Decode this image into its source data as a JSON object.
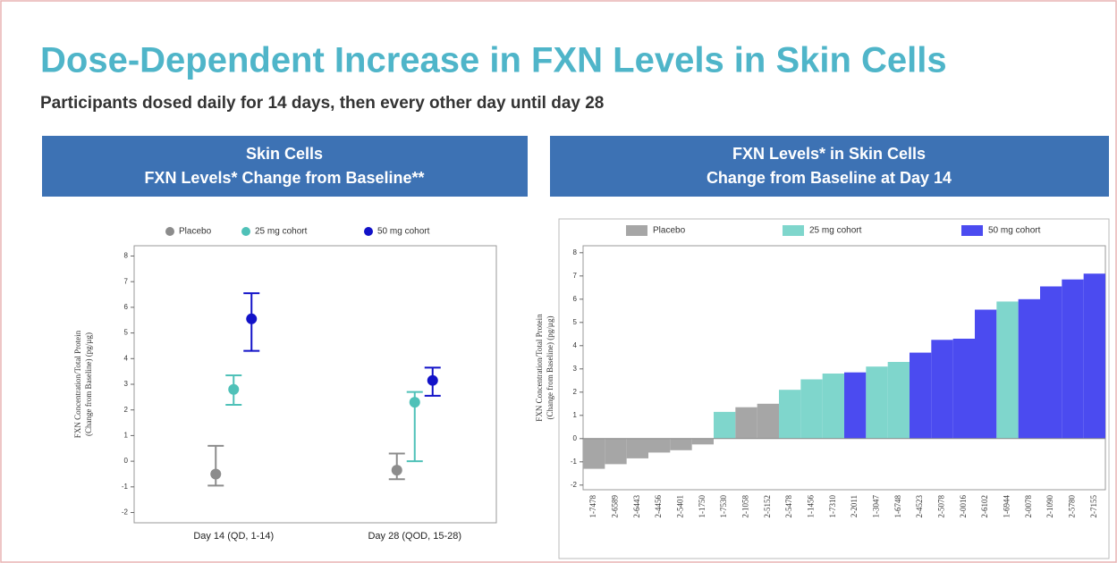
{
  "title": "Dose-Dependent Increase in FXN Levels in Skin Cells",
  "subtitle": "Participants dosed daily for 14 days, then every other day until day 28",
  "chart_data": [
    {
      "type": "errorbar",
      "header": [
        "Skin Cells",
        "FXN Levels* Change from Baseline**"
      ],
      "ylabel": [
        "FXN Concentration/Total Protein",
        "(Change from Baseline) (pg/µg)"
      ],
      "categories": [
        "Day 14 (QD, 1-14)",
        "Day 28 (QOD, 15-28)"
      ],
      "series": [
        {
          "name": "Placebo",
          "color": "#8c8c8c",
          "values": [
            -0.5,
            -0.35
          ],
          "lower": [
            -0.95,
            -0.7
          ],
          "upper": [
            0.6,
            0.3
          ]
        },
        {
          "name": "25 mg cohort",
          "color": "#4fc1b8",
          "values": [
            2.8,
            2.3
          ],
          "lower": [
            2.2,
            0
          ],
          "upper": [
            3.35,
            2.7
          ]
        },
        {
          "name": "50 mg cohort",
          "color": "#1212c8",
          "values": [
            5.55,
            3.15
          ],
          "lower": [
            4.3,
            2.55
          ],
          "upper": [
            6.55,
            3.65
          ]
        }
      ],
      "ylim": [
        -2.4,
        8.4
      ],
      "yticks": [
        -2,
        -1,
        0,
        1,
        2,
        3,
        4,
        5,
        6,
        7,
        8
      ]
    },
    {
      "type": "bar",
      "header": [
        "FXN Levels* in Skin Cells",
        "Change from Baseline at Day 14"
      ],
      "ylabel": [
        "FXN Concentration/Total Protein",
        "(Change from Baseline) (pg/µg)"
      ],
      "categories": [
        "1-7478",
        "2-6589",
        "2-6443",
        "2-4456",
        "2-5401",
        "1-1750",
        "1-7530",
        "2-1058",
        "2-5152",
        "2-5478",
        "1-1456",
        "1-7310",
        "2-2011",
        "1-3047",
        "1-6748",
        "2-4523",
        "2-5078",
        "2-0016",
        "2-6102",
        "1-6944",
        "2-0078",
        "2-1090",
        "2-5780",
        "2-7155"
      ],
      "series": [
        {
          "name": "Placebo",
          "color": "#a6a6a6",
          "values": [
            -1.3,
            -1.1,
            -0.85,
            -0.6,
            -0.5,
            -0.25,
            null,
            1.35,
            1.5,
            null,
            null,
            null,
            null,
            null,
            null,
            null,
            null,
            null,
            null,
            null,
            null,
            null,
            null,
            null
          ]
        },
        {
          "name": "25 mg cohort",
          "color": "#7fd6cc",
          "values": [
            null,
            null,
            null,
            null,
            null,
            null,
            1.15,
            null,
            null,
            2.1,
            2.55,
            2.8,
            null,
            3.1,
            3.3,
            null,
            null,
            null,
            null,
            5.9,
            null,
            null,
            null,
            null
          ]
        },
        {
          "name": "50 mg cohort",
          "color": "#4b4bf0",
          "values": [
            null,
            null,
            null,
            null,
            null,
            null,
            null,
            null,
            null,
            null,
            null,
            null,
            2.85,
            null,
            null,
            3.7,
            4.25,
            4.3,
            5.55,
            null,
            6.0,
            6.55,
            6.85,
            7.1
          ]
        }
      ],
      "ylim": [
        -2.2,
        8.3
      ],
      "yticks": [
        -2,
        -1,
        0,
        1,
        2,
        3,
        4,
        5,
        6,
        7,
        8
      ]
    }
  ]
}
